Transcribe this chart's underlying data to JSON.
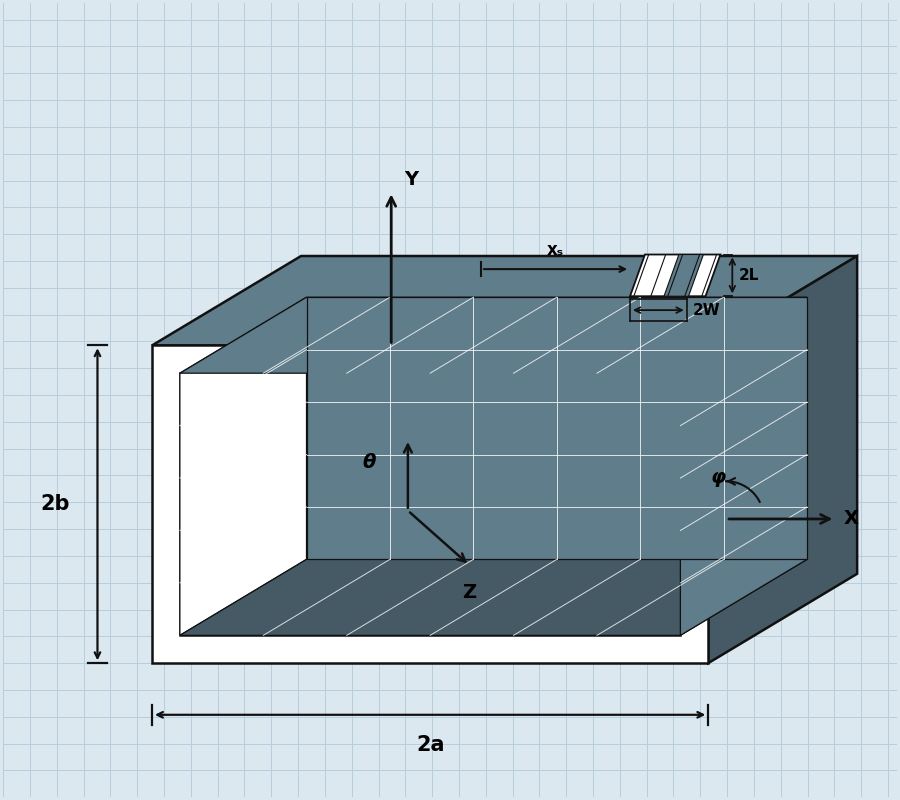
{
  "bg_color": "#dce8f0",
  "grid_color": "#b8cedd",
  "waveguide_color": "#607d8b",
  "waveguide_mid": "#5a7888",
  "waveguide_dark": "#455a64",
  "waveguide_light": "#78909c",
  "outline_color": "#111111",
  "white": "#ffffff",
  "label_2a": "2a",
  "label_2b": "2b",
  "label_xs": "xₛ",
  "label_2L": "2L",
  "label_2W": "2W",
  "label_X": "X",
  "label_Y": "Y",
  "label_Z": "Z",
  "label_theta": "θ",
  "label_phi": "φ",
  "fontsize_labels": 14,
  "fontsize_axes": 14
}
